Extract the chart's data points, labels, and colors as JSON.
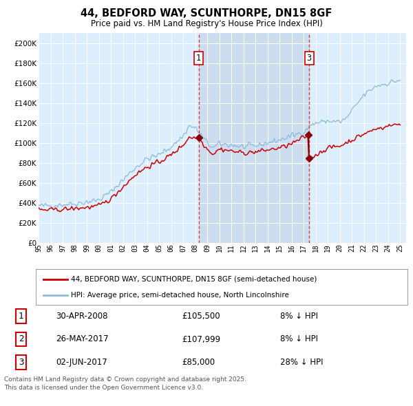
{
  "title": "44, BEDFORD WAY, SCUNTHORPE, DN15 8GF",
  "subtitle": "Price paid vs. HM Land Registry's House Price Index (HPI)",
  "background_color": "#ffffff",
  "plot_bg_color": "#ddeeff",
  "hpi_line_color": "#88bbdd",
  "price_line_color": "#cc0000",
  "marker_color": "#880000",
  "vline_color": "#ee3333",
  "shade_color": "#ccddf0",
  "ylim": [
    0,
    210000
  ],
  "ytick_step": 20000,
  "xmin": 1995,
  "xmax": 2025.5,
  "legend_label_red": "44, BEDFORD WAY, SCUNTHORPE, DN15 8GF (semi-detached house)",
  "legend_label_blue": "HPI: Average price, semi-detached house, North Lincolnshire",
  "sale1_x": 2008.29,
  "sale1_price": 105500,
  "sale2_x": 2017.4,
  "sale2_price": 107999,
  "sale3_x": 2017.45,
  "sale3_price": 85000,
  "sale_annotations": [
    {
      "num": "1",
      "date": "30-APR-2008",
      "price": "£105,500",
      "change": "8% ↓ HPI"
    },
    {
      "num": "2",
      "date": "26-MAY-2017",
      "price": "£107,999",
      "change": "8% ↓ HPI"
    },
    {
      "num": "3",
      "date": "02-JUN-2017",
      "price": "£85,000",
      "change": "28% ↓ HPI"
    }
  ],
  "footer": "Contains HM Land Registry data © Crown copyright and database right 2025.\nThis data is licensed under the Open Government Licence v3.0."
}
